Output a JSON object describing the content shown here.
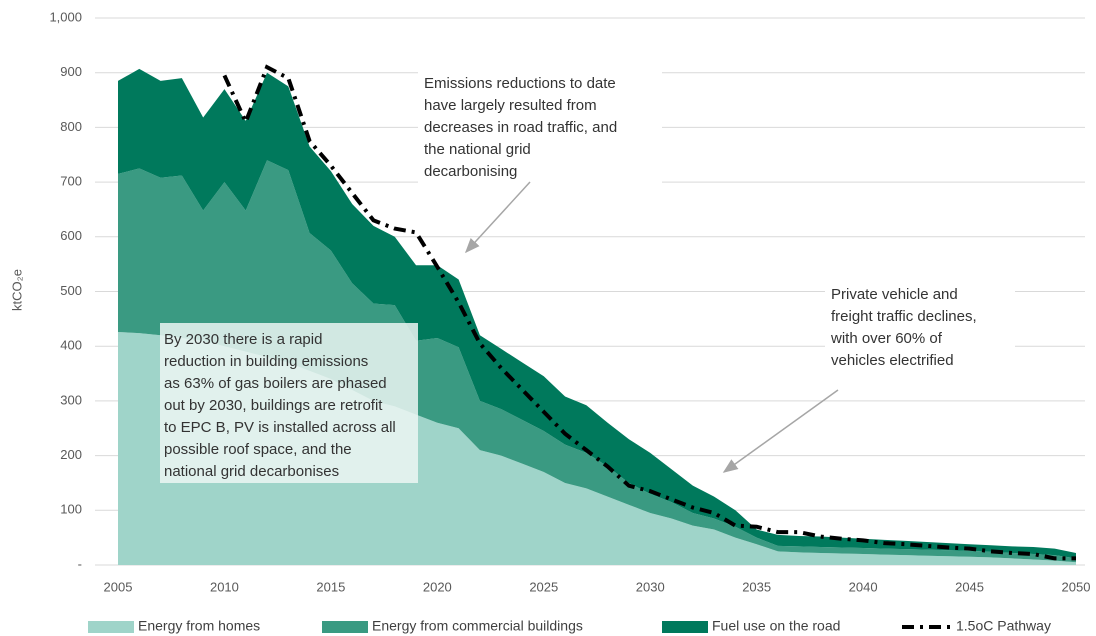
{
  "chart_data": {
    "type": "stacked-area",
    "y_label": "ktCO₂e",
    "x": [
      2005,
      2006,
      2007,
      2008,
      2009,
      2010,
      2011,
      2012,
      2013,
      2014,
      2015,
      2016,
      2017,
      2018,
      2019,
      2020,
      2021,
      2022,
      2023,
      2024,
      2025,
      2026,
      2027,
      2028,
      2029,
      2030,
      2031,
      2032,
      2033,
      2034,
      2035,
      2036,
      2037,
      2038,
      2039,
      2040,
      2041,
      2042,
      2043,
      2044,
      2045,
      2046,
      2047,
      2048,
      2049,
      2050
    ],
    "xlim": [
      2005,
      2050
    ],
    "xticks": [
      2005,
      2010,
      2015,
      2020,
      2025,
      2030,
      2035,
      2040,
      2045,
      2050
    ],
    "ylim": [
      0,
      1000
    ],
    "yticks": [
      {
        "value": 0,
        "label": "-"
      },
      100,
      200,
      300,
      400,
      500,
      600,
      700,
      800,
      900,
      {
        "value": 1000,
        "label": "1,000"
      }
    ],
    "grid": true,
    "legend": "bottom",
    "series": [
      {
        "name": "Energy from homes",
        "color": "#9fd4c9",
        "values": [
          426,
          424,
          420,
          415,
          410,
          400,
          390,
          380,
          370,
          355,
          340,
          320,
          300,
          290,
          275,
          260,
          250,
          210,
          200,
          185,
          170,
          150,
          140,
          125,
          110,
          95,
          85,
          72,
          65,
          50,
          38,
          25,
          23,
          22,
          21,
          20,
          19,
          18,
          17,
          16,
          15,
          14,
          12,
          10,
          8,
          5
        ]
      },
      {
        "name": "Energy from commercial buildings",
        "color": "#3a9a82",
        "values": [
          289,
          301,
          288,
          297,
          238,
          300,
          258,
          360,
          352,
          252,
          235,
          195,
          178,
          185,
          135,
          155,
          148,
          90,
          85,
          80,
          75,
          70,
          65,
          55,
          40,
          35,
          30,
          23,
          20,
          20,
          12,
          10,
          11,
          11,
          11,
          11,
          11,
          11,
          11,
          11,
          11,
          10,
          10,
          10,
          10,
          7
        ]
      },
      {
        "name": "Fuel use on the road",
        "color": "#00795c",
        "values": [
          170,
          182,
          177,
          178,
          170,
          170,
          164,
          160,
          153,
          158,
          145,
          145,
          142,
          125,
          138,
          133,
          124,
          120,
          110,
          105,
          100,
          88,
          87,
          80,
          80,
          75,
          60,
          50,
          40,
          30,
          15,
          20,
          19,
          19,
          18,
          17,
          16,
          15,
          14,
          13,
          12,
          12,
          12,
          13,
          12,
          10
        ]
      },
      {
        "name": "1.5oC Pathway",
        "type": "line",
        "color": "#000000",
        "values": [
          null,
          null,
          null,
          null,
          null,
          895,
          810,
          910,
          890,
          775,
          730,
          680,
          630,
          615,
          608,
          545,
          480,
          405,
          360,
          320,
          280,
          240,
          210,
          180,
          145,
          135,
          120,
          105,
          95,
          72,
          70,
          60,
          60,
          52,
          48,
          45,
          40,
          38,
          35,
          32,
          30,
          25,
          22,
          20,
          12,
          12
        ]
      }
    ],
    "annotations": [
      {
        "lines": [
          "Emissions reductions to date",
          "have largely resulted from",
          "decreases in road traffic, and",
          "the national grid",
          "decarbonising"
        ]
      },
      {
        "lines": [
          "Private vehicle and",
          "freight traffic declines,",
          "with over 60% of",
          "vehicles electrified"
        ]
      },
      {
        "lines": [
          "By 2030 there is a rapid",
          "reduction in building emissions",
          "as 63% of gas boilers are phased",
          "out by 2030, buildings are retrofit",
          "to EPC B, PV is installed across all",
          "possible roof space, and the",
          "national grid decarbonises"
        ]
      }
    ]
  }
}
